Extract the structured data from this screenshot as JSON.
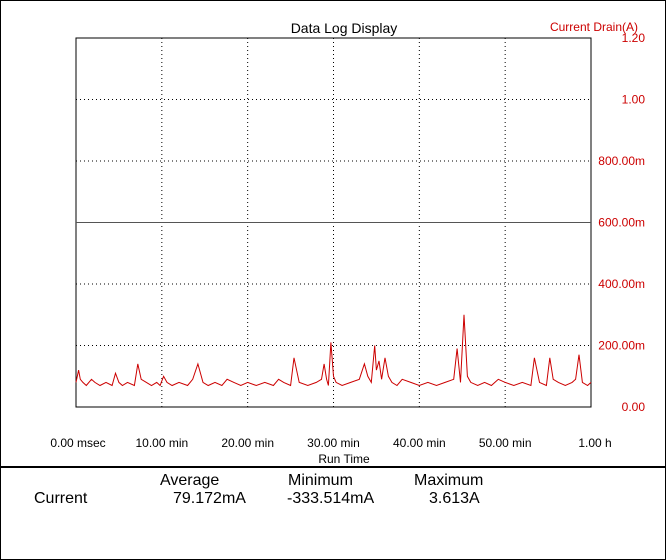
{
  "chart_data": {
    "type": "line",
    "title": "Data Log Display",
    "xlabel": "Run Time",
    "ylabel": "Current Drain(A)",
    "x_ticks": [
      "0.00 msec",
      "10.00 min",
      "20.00 min",
      "30.00 min",
      "40.00 min",
      "50.00 min",
      "1.00 h"
    ],
    "y_ticks": [
      "0.00",
      "200.00m",
      "400.00m",
      "600.00m",
      "800.00m",
      "1.00",
      "1.20"
    ],
    "xlim": [
      0,
      60
    ],
    "ylim": [
      0,
      1.2
    ],
    "x_unit": "min",
    "y_unit": "A",
    "grid": true,
    "reference_line": 0.6,
    "series": [
      {
        "color": "#cc0000",
        "x": [
          0,
          0.3,
          0.5,
          0.8,
          1.2,
          1.8,
          2.2,
          2.8,
          3.5,
          4.2,
          4.6,
          5.0,
          5.4,
          6.0,
          6.8,
          7.2,
          7.6,
          8.2,
          8.8,
          9.4,
          9.8,
          10.2,
          10.6,
          11.2,
          12.0,
          13.0,
          13.6,
          14.2,
          14.8,
          15.4,
          16.2,
          17.0,
          17.6,
          18.4,
          19.2,
          20.0,
          21.0,
          22.0,
          23.0,
          23.6,
          24.2,
          25.0,
          25.4,
          26.0,
          27.0,
          28.0,
          28.6,
          28.9,
          29.2,
          29.4,
          29.7,
          30.0,
          30.3,
          31.0,
          32.0,
          33.0,
          33.6,
          34.0,
          34.4,
          34.8,
          35.0,
          35.3,
          35.6,
          36.0,
          36.4,
          36.8,
          37.4,
          38.0,
          39.0,
          40.0,
          41.0,
          42.0,
          43.0,
          44.0,
          44.4,
          44.8,
          45.2,
          45.6,
          46.0,
          46.8,
          47.6,
          48.4,
          49.2,
          50.0,
          51.0,
          52.0,
          53.0,
          53.4,
          54.0,
          54.8,
          55.2,
          55.6,
          56.2,
          57.0,
          57.8,
          58.2,
          58.6,
          59.0,
          59.6,
          60.0
        ],
        "y": [
          0.08,
          0.12,
          0.09,
          0.08,
          0.07,
          0.09,
          0.08,
          0.07,
          0.08,
          0.07,
          0.11,
          0.08,
          0.07,
          0.08,
          0.07,
          0.14,
          0.09,
          0.08,
          0.07,
          0.08,
          0.07,
          0.1,
          0.08,
          0.07,
          0.08,
          0.07,
          0.09,
          0.14,
          0.08,
          0.07,
          0.08,
          0.07,
          0.09,
          0.08,
          0.07,
          0.08,
          0.07,
          0.08,
          0.07,
          0.09,
          0.08,
          0.07,
          0.16,
          0.08,
          0.07,
          0.08,
          0.09,
          0.14,
          0.09,
          0.07,
          0.21,
          0.1,
          0.08,
          0.07,
          0.08,
          0.09,
          0.14,
          0.1,
          0.08,
          0.2,
          0.12,
          0.15,
          0.09,
          0.16,
          0.1,
          0.08,
          0.07,
          0.09,
          0.08,
          0.07,
          0.08,
          0.07,
          0.08,
          0.09,
          0.19,
          0.08,
          0.3,
          0.1,
          0.08,
          0.07,
          0.08,
          0.07,
          0.09,
          0.08,
          0.07,
          0.08,
          0.07,
          0.16,
          0.08,
          0.07,
          0.16,
          0.09,
          0.08,
          0.07,
          0.08,
          0.09,
          0.17,
          0.08,
          0.07,
          0.08
        ]
      }
    ]
  },
  "stats": {
    "row_label": "Current",
    "headers": [
      "Average",
      "Minimum",
      "Maximum"
    ],
    "values": [
      "79.172mA",
      "-333.514mA",
      "3.613A"
    ]
  }
}
